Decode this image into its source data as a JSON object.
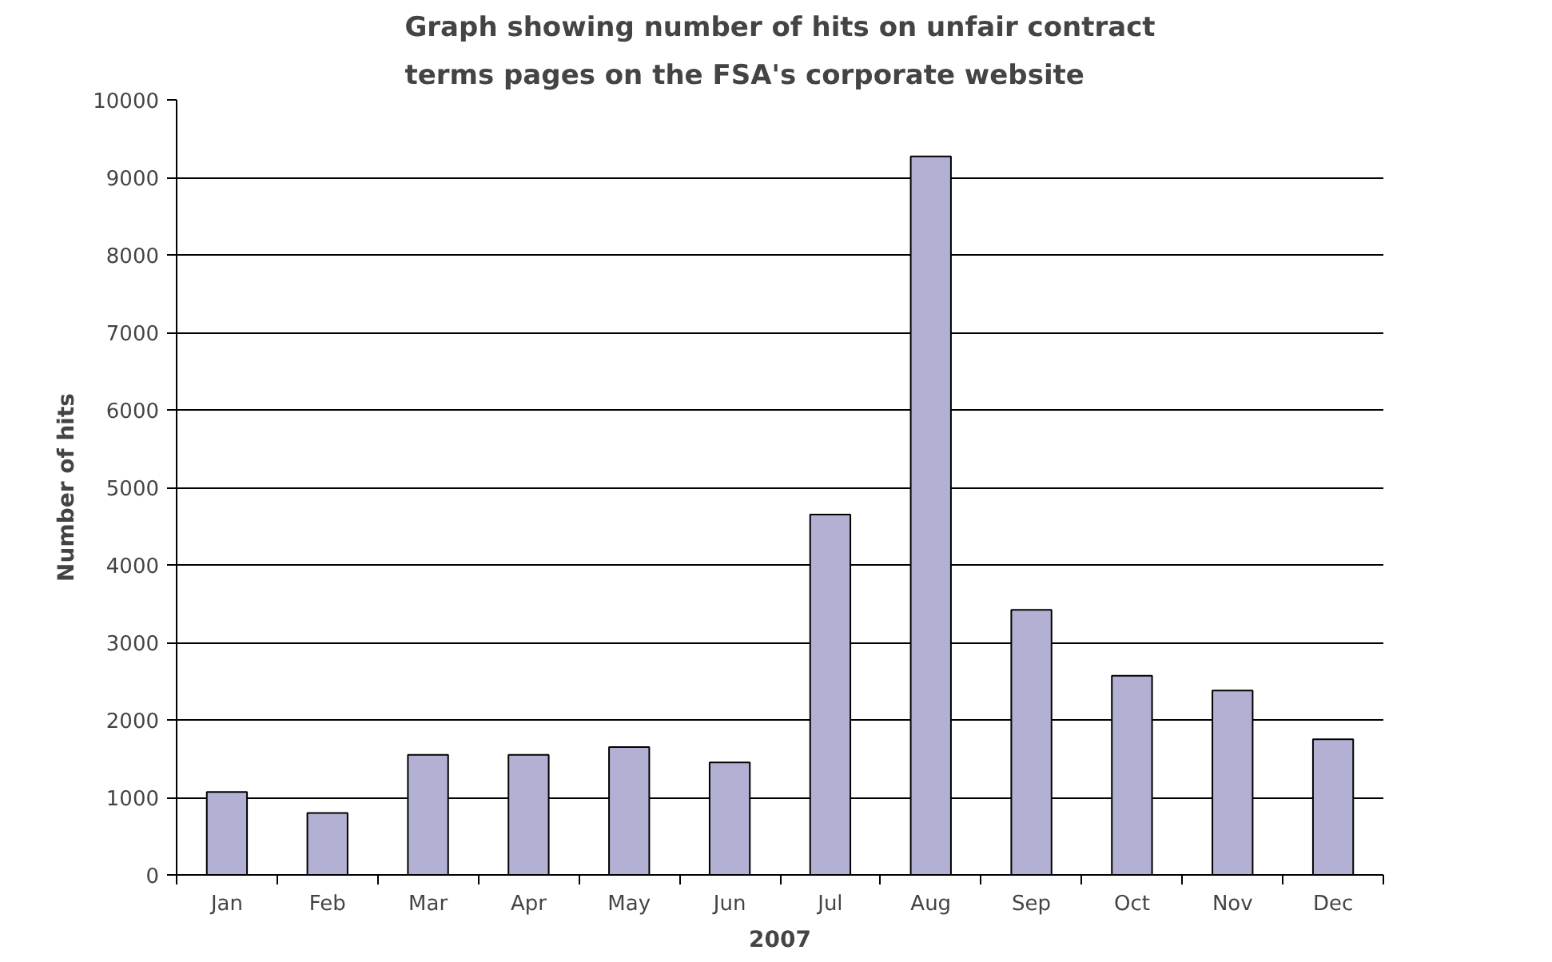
{
  "chart_data": {
    "type": "bar",
    "title": "Graph showing number of hits on unfair contract\nterms pages on the FSA's corporate website",
    "xlabel": "2007",
    "ylabel": "Number of hits",
    "categories": [
      "Jan",
      "Feb",
      "Mar",
      "Apr",
      "May",
      "Jun",
      "Jul",
      "Aug",
      "Sep",
      "Oct",
      "Nov",
      "Dec"
    ],
    "values": [
      1070,
      800,
      1550,
      1550,
      1650,
      1450,
      4650,
      9270,
      3420,
      2570,
      2380,
      1750
    ],
    "color": "#b3b1d3",
    "ylim": [
      0,
      10000
    ],
    "yticks": [
      0,
      1000,
      2000,
      3000,
      4000,
      5000,
      6000,
      7000,
      8000,
      9000,
      10000
    ],
    "grid": "y"
  }
}
